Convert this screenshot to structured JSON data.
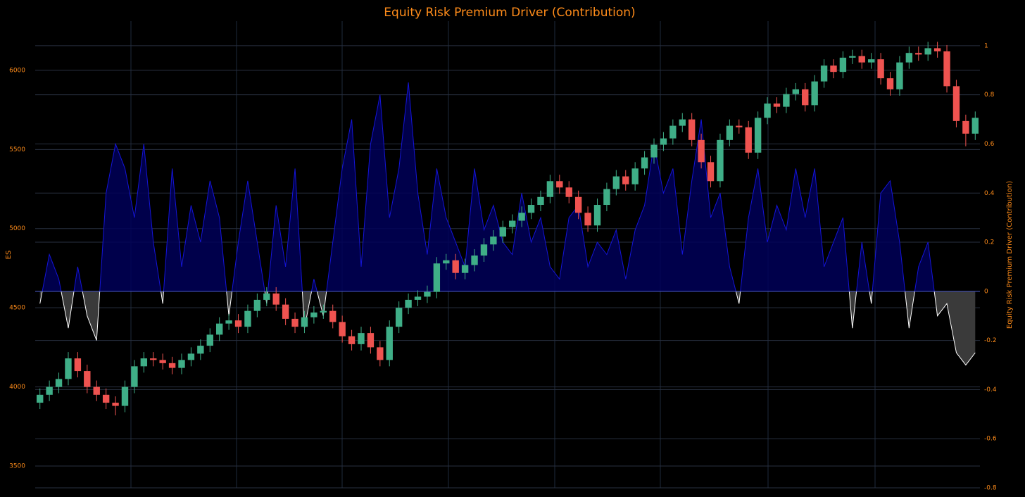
{
  "chart_data": {
    "type": "candlestick",
    "title": "Equity Risk Premium Driver (Contribution)",
    "ylabel": "ES",
    "y2label": "Equity Risk Premium Driver (Contribution)",
    "ylim": [
      3362,
      6311
    ],
    "yticks": [
      3500,
      4000,
      4500,
      5000,
      5500,
      6000
    ],
    "y2lim": [
      -0.8,
      1.1
    ],
    "y2ticks": [
      -0.8,
      -0.6,
      -0.4,
      -0.2,
      0,
      0.2,
      0.4,
      0.6,
      0.8,
      1
    ],
    "grid": true,
    "increasing_color": "#3fae87",
    "decreasing_color": "#ef5350",
    "open": [
      3900,
      3950,
      4000,
      4050,
      4180,
      4100,
      4000,
      3950,
      3900,
      3880,
      4000,
      4130,
      4180,
      4170,
      4150,
      4120,
      4170,
      4210,
      4260,
      4330,
      4400,
      4420,
      4380,
      4480,
      4550,
      4590,
      4520,
      4430,
      4380,
      4440,
      4470,
      4480,
      4410,
      4320,
      4270,
      4340,
      4250,
      4170,
      4380,
      4500,
      4550,
      4570,
      4600,
      4780,
      4800,
      4720,
      4770,
      4830,
      4900,
      4950,
      5010,
      5050,
      5100,
      5150,
      5200,
      5300,
      5260,
      5200,
      5100,
      5020,
      5150,
      5250,
      5330,
      5280,
      5380,
      5450,
      5530,
      5570,
      5650,
      5690,
      5560,
      5420,
      5300,
      5560,
      5650,
      5640,
      5480,
      5700,
      5790,
      5770,
      5850,
      5880,
      5780,
      5930,
      6030,
      5990,
      6080,
      6090,
      6050,
      6070,
      5950,
      5880,
      6050,
      6110,
      6100,
      6140,
      6120,
      5900,
      5680,
      5600
    ],
    "high": [
      3990,
      4040,
      4090,
      4220,
      4220,
      4140,
      4040,
      3990,
      3940,
      4040,
      4170,
      4220,
      4220,
      4210,
      4190,
      4210,
      4250,
      4300,
      4370,
      4440,
      4460,
      4460,
      4520,
      4590,
      4630,
      4630,
      4560,
      4470,
      4480,
      4510,
      4520,
      4520,
      4450,
      4360,
      4380,
      4380,
      4290,
      4420,
      4540,
      4590,
      4610,
      4640,
      4820,
      4840,
      4840,
      4810,
      4870,
      4940,
      4990,
      5050,
      5090,
      5140,
      5190,
      5240,
      5340,
      5340,
      5300,
      5240,
      5140,
      5190,
      5290,
      5370,
      5370,
      5420,
      5490,
      5570,
      5610,
      5690,
      5730,
      5730,
      5600,
      5460,
      5600,
      5690,
      5690,
      5680,
      5740,
      5830,
      5830,
      5890,
      5920,
      5920,
      5970,
      6070,
      6070,
      6120,
      6130,
      6130,
      6110,
      6110,
      5990,
      6090,
      6150,
      6150,
      6180,
      6180,
      6160,
      5940,
      5720,
      5740
    ],
    "low": [
      3860,
      3910,
      3960,
      4010,
      4060,
      3960,
      3910,
      3860,
      3820,
      3840,
      3960,
      4090,
      4130,
      4110,
      4080,
      4080,
      4130,
      4170,
      4220,
      4290,
      4360,
      4340,
      4340,
      4440,
      4510,
      4480,
      4390,
      4340,
      4340,
      4400,
      4430,
      4370,
      4280,
      4230,
      4230,
      4210,
      4130,
      4130,
      4340,
      4460,
      4510,
      4530,
      4560,
      4740,
      4680,
      4680,
      4730,
      4790,
      4860,
      4910,
      4970,
      5010,
      5060,
      5110,
      5160,
      5220,
      5160,
      5060,
      4980,
      4980,
      5110,
      5210,
      5240,
      5240,
      5340,
      5410,
      5490,
      5530,
      5610,
      5520,
      5380,
      5260,
      5260,
      5520,
      5600,
      5440,
      5440,
      5660,
      5730,
      5730,
      5810,
      5740,
      5740,
      5890,
      5950,
      5950,
      6040,
      6010,
      6010,
      5910,
      5840,
      5840,
      6010,
      6060,
      6060,
      6080,
      5860,
      5640,
      5520,
      5560
    ],
    "close": [
      3950,
      4000,
      4050,
      4180,
      4100,
      4000,
      3950,
      3900,
      3880,
      4000,
      4130,
      4180,
      4170,
      4150,
      4120,
      4170,
      4210,
      4260,
      4330,
      4400,
      4420,
      4380,
      4480,
      4550,
      4590,
      4520,
      4430,
      4380,
      4440,
      4470,
      4480,
      4410,
      4320,
      4270,
      4340,
      4250,
      4170,
      4380,
      4500,
      4550,
      4570,
      4600,
      4780,
      4800,
      4720,
      4770,
      4830,
      4900,
      4950,
      5010,
      5050,
      5100,
      5150,
      5200,
      5300,
      5260,
      5200,
      5100,
      5020,
      5150,
      5250,
      5330,
      5280,
      5380,
      5450,
      5530,
      5570,
      5650,
      5690,
      5560,
      5420,
      5300,
      5560,
      5650,
      5640,
      5480,
      5700,
      5790,
      5770,
      5850,
      5880,
      5780,
      5930,
      6030,
      5990,
      6080,
      6090,
      6050,
      6070,
      5950,
      5880,
      6050,
      6110,
      6100,
      6140,
      6120,
      5900,
      5680,
      5600,
      5700
    ],
    "series": [
      {
        "axis": "y2",
        "color": "#1414d8",
        "fill": "#000058",
        "negative_color": "#ffffff",
        "negative_fill": "#3a3a3a",
        "values": [
          -0.05,
          0.15,
          0.05,
          -0.15,
          0.1,
          -0.1,
          -0.2,
          0.4,
          0.6,
          0.5,
          0.3,
          0.6,
          0.2,
          -0.05,
          0.5,
          0.1,
          0.35,
          0.2,
          0.45,
          0.3,
          -0.1,
          0.2,
          0.45,
          0.2,
          -0.05,
          0.35,
          0.1,
          0.5,
          -0.15,
          0.05,
          -0.1,
          0.2,
          0.5,
          0.7,
          0.1,
          0.6,
          0.8,
          0.3,
          0.5,
          0.85,
          0.4,
          0.15,
          0.5,
          0.3,
          0.2,
          0.1,
          0.5,
          0.25,
          0.35,
          0.2,
          0.15,
          0.4,
          0.2,
          0.3,
          0.1,
          0.05,
          0.3,
          0.35,
          0.1,
          0.2,
          0.15,
          0.25,
          0.05,
          0.25,
          0.35,
          0.6,
          0.4,
          0.5,
          0.15,
          0.45,
          0.7,
          0.3,
          0.4,
          0.1,
          -0.05,
          0.3,
          0.5,
          0.2,
          0.35,
          0.25,
          0.5,
          0.3,
          0.5,
          0.1,
          0.2,
          0.3,
          -0.15,
          0.2,
          -0.05,
          0.4,
          0.45,
          0.2,
          -0.15,
          0.1,
          0.2,
          -0.1,
          -0.05,
          -0.25,
          -0.3,
          -0.25
        ]
      }
    ]
  }
}
